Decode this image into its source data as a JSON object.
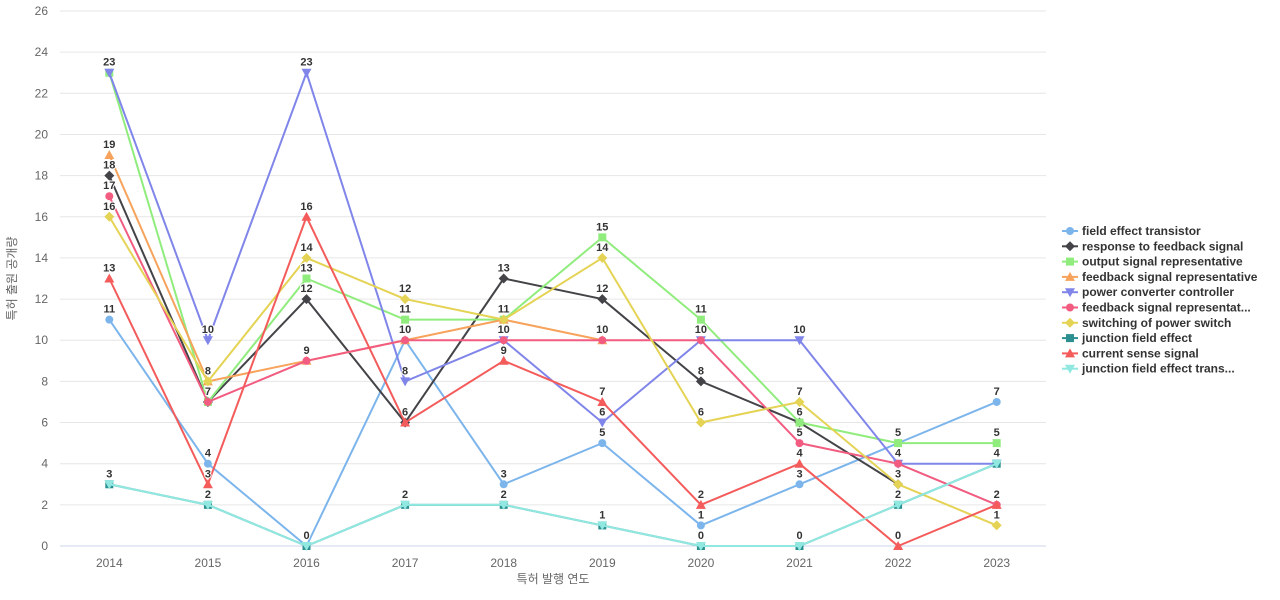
{
  "chart_data": {
    "type": "line",
    "title": "",
    "xlabel": "특허 발행 연도",
    "ylabel": "특허 출원 공개량",
    "categories": [
      "2014",
      "2015",
      "2016",
      "2017",
      "2018",
      "2019",
      "2020",
      "2021",
      "2022",
      "2023"
    ],
    "ylim": [
      0,
      26
    ],
    "ytick_step": 2,
    "grid": "horizontal",
    "legend_position": "right",
    "data_labels": true,
    "series": [
      {
        "name": "field effect transistor",
        "color": "#7cb5ec",
        "marker": "circle",
        "values": [
          11,
          4,
          0,
          10,
          3,
          5,
          1,
          3,
          5,
          7
        ]
      },
      {
        "name": "response to feedback signal",
        "color": "#434348",
        "marker": "diamond",
        "values": [
          18,
          7,
          12,
          6,
          13,
          12,
          8,
          6,
          3,
          null
        ]
      },
      {
        "name": "output signal representative",
        "color": "#90ed7d",
        "marker": "square",
        "values": [
          23,
          7,
          13,
          11,
          11,
          15,
          11,
          6,
          5,
          5
        ]
      },
      {
        "name": "feedback signal representative",
        "color": "#f7a35c",
        "marker": "triangle",
        "values": [
          19,
          8,
          9,
          10,
          11,
          10,
          null,
          null,
          null,
          null
        ]
      },
      {
        "name": "power converter controller",
        "color": "#8085e9",
        "marker": "triangle-down",
        "values": [
          23,
          10,
          23,
          8,
          10,
          6,
          10,
          10,
          4,
          4
        ]
      },
      {
        "name": "feedback signal representat...",
        "color": "#f15c80",
        "marker": "circle",
        "values": [
          17,
          7,
          9,
          10,
          10,
          10,
          10,
          5,
          4,
          2
        ]
      },
      {
        "name": "switching of power switch",
        "color": "#e4d354",
        "marker": "diamond",
        "values": [
          16,
          8,
          14,
          12,
          11,
          14,
          6,
          7,
          3,
          1
        ]
      },
      {
        "name": "junction field effect",
        "color": "#2b908f",
        "marker": "square",
        "values": [
          3,
          2,
          0,
          2,
          2,
          1,
          0,
          0,
          2,
          4
        ]
      },
      {
        "name": "current sense signal",
        "color": "#f45b5b",
        "marker": "triangle",
        "values": [
          13,
          3,
          16,
          6,
          9,
          7,
          2,
          4,
          0,
          2
        ]
      },
      {
        "name": "junction field effect trans...",
        "color": "#91e8e1",
        "marker": "triangle-down",
        "values": [
          3,
          2,
          0,
          2,
          2,
          1,
          0,
          0,
          2,
          4
        ]
      }
    ]
  },
  "axes": {
    "x_title": "특허 발행 연도",
    "y_title": "특허 출원 공개량"
  },
  "colors": {
    "background": "#ffffff",
    "grid": "#e6e6e6",
    "axis_line": "#ccd6eb",
    "tick_label": "#666666",
    "axis_title": "#666666",
    "data_label": "#333333",
    "data_label_halo": "#ffffff",
    "legend_text": "#333333"
  }
}
